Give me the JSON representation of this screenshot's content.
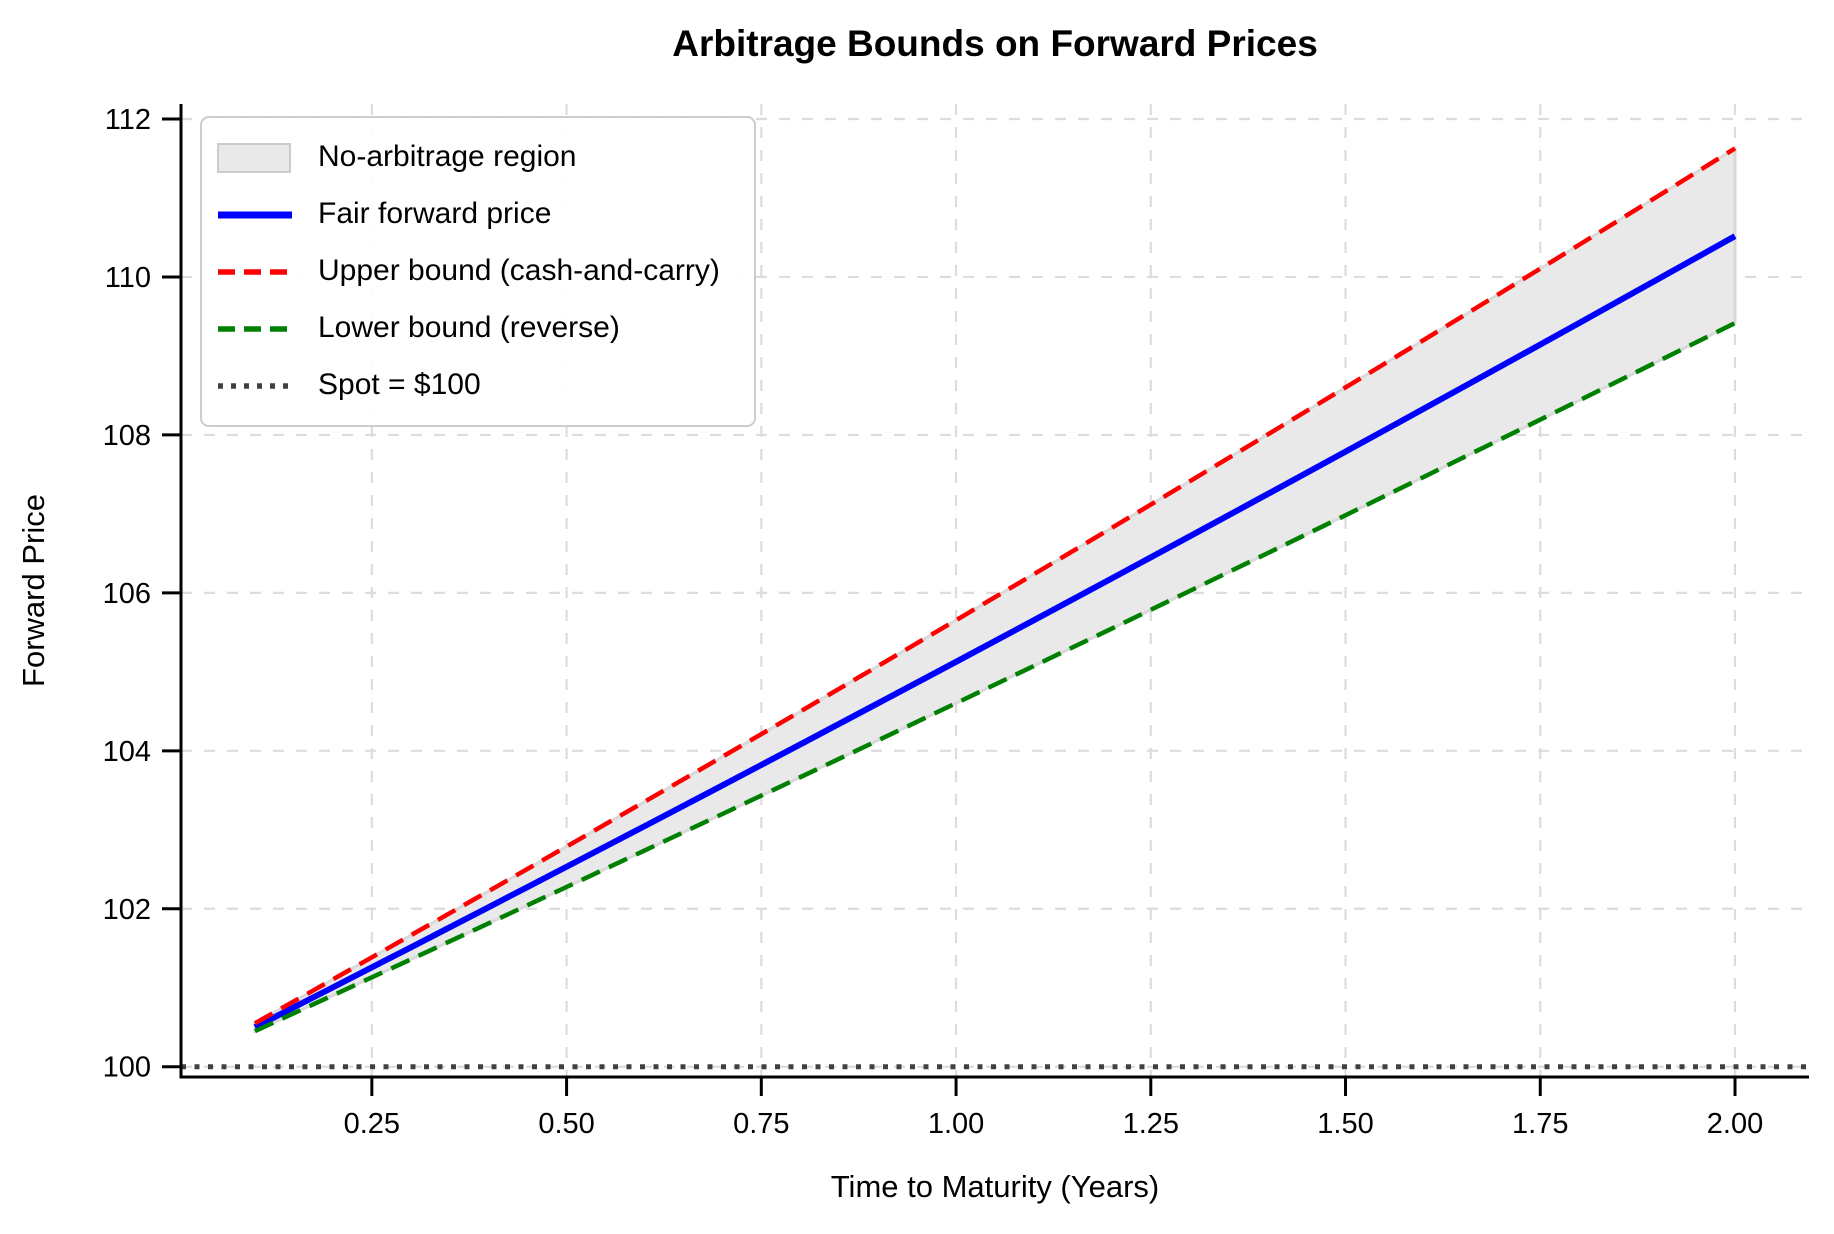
{
  "chart_data": {
    "type": "line",
    "title": "Arbitrage Bounds on Forward Prices",
    "xlabel": "Time to Maturity (Years)",
    "ylabel": "Forward Price",
    "xlim": [
      0.005,
      2.095
    ],
    "ylim": [
      99.87,
      112.19
    ],
    "grid": {
      "on": true,
      "style": "dashed",
      "color": "#dcdcdc"
    },
    "x_ticks": {
      "values": [
        0.25,
        0.5,
        0.75,
        1.0,
        1.25,
        1.5,
        1.75,
        2.0
      ],
      "labels": [
        "0.25",
        "0.50",
        "0.75",
        "1.00",
        "1.25",
        "1.50",
        "1.75",
        "2.00"
      ]
    },
    "y_ticks": {
      "values": [
        100,
        102,
        104,
        106,
        108,
        110,
        112
      ],
      "labels": [
        "100",
        "102",
        "104",
        "106",
        "108",
        "110",
        "112"
      ]
    },
    "x": [
      0.1,
      0.2,
      0.3,
      0.4,
      0.5,
      0.6,
      0.7,
      0.8,
      0.9,
      1.0,
      1.1,
      1.2,
      1.3,
      1.4,
      1.5,
      1.6,
      1.7,
      1.8,
      1.9,
      2.0
    ],
    "series": [
      {
        "name": "Fair forward price",
        "color": "#0000ff",
        "style": "solid",
        "width": 6,
        "values": [
          100.501,
          101.005,
          101.511,
          102.02,
          102.532,
          103.045,
          103.562,
          104.081,
          104.603,
          105.127,
          105.654,
          106.184,
          106.716,
          107.251,
          107.788,
          108.329,
          108.872,
          109.417,
          109.966,
          110.517
        ]
      },
      {
        "name": "Upper bound (cash-and-carry)",
        "color": "#ff0000",
        "style": "dashed",
        "width": 4.5,
        "values": [
          100.551,
          101.106,
          101.664,
          102.224,
          102.788,
          103.355,
          103.925,
          104.498,
          105.075,
          105.654,
          106.237,
          106.823,
          107.413,
          108.005,
          108.601,
          109.2,
          109.803,
          110.408,
          111.017,
          111.628
        ]
      },
      {
        "name": "Lower bound (reverse)",
        "color": "#008000",
        "style": "dashed",
        "width": 4.5,
        "values": [
          100.451,
          100.904,
          101.359,
          101.816,
          102.276,
          102.737,
          103.2,
          103.666,
          104.133,
          104.603,
          105.075,
          105.548,
          106.024,
          106.503,
          106.983,
          107.466,
          107.95,
          108.437,
          108.926,
          109.417
        ]
      }
    ],
    "band": {
      "name": "No-arbitrage region",
      "fill": "#e9e9e9",
      "edge": "#d9d9d9",
      "upper": "Upper bound (cash-and-carry)",
      "lower": "Lower bound (reverse)"
    },
    "spot_line": {
      "label": "Spot = $100",
      "value": 100,
      "color": "#404040",
      "style": "dotted",
      "width": 5
    },
    "legend": {
      "position": "upper left",
      "items": [
        {
          "label": "No-arbitrage region",
          "swatch": "patch",
          "color": "#e9e9e9",
          "edge": "#cccccc"
        },
        {
          "label": "Fair forward price",
          "swatch": "solid",
          "color": "#0000ff"
        },
        {
          "label": "Upper bound (cash-and-carry)",
          "swatch": "dashed",
          "color": "#ff0000"
        },
        {
          "label": "Lower bound (reverse)",
          "swatch": "dashed",
          "color": "#008000"
        },
        {
          "label": "Spot = $100",
          "swatch": "dotted",
          "color": "#404040"
        }
      ]
    }
  }
}
